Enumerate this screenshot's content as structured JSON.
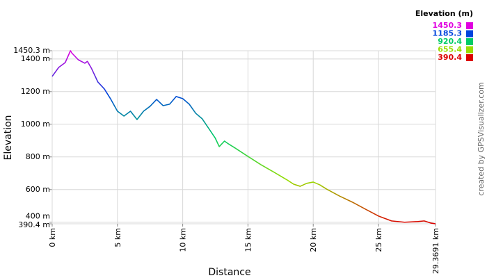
{
  "chart_data": {
    "type": "line",
    "xlabel": "Distance",
    "ylabel": "Elevation",
    "credit": "created by GPSVisualizer.com",
    "x": [
      0,
      0.5,
      1,
      1.4,
      1.5,
      2,
      2.5,
      2.7,
      3,
      3.5,
      4,
      4.5,
      5,
      5.5,
      6,
      6.5,
      7,
      7.5,
      8,
      8.5,
      9,
      9.5,
      10,
      10.5,
      11,
      11.5,
      12,
      12.5,
      12.8,
      13.2,
      13.5,
      14,
      14.5,
      15,
      16,
      17,
      18,
      18.5,
      19,
      19.5,
      20,
      20.5,
      21,
      22,
      23,
      24,
      25,
      26,
      27,
      28,
      28.5,
      29,
      29.3691
    ],
    "values": [
      1293,
      1348,
      1378,
      1450.3,
      1437,
      1395,
      1374,
      1385,
      1344,
      1259,
      1216,
      1152,
      1080,
      1050,
      1080,
      1029,
      1080,
      1110,
      1152,
      1114,
      1123,
      1170,
      1157,
      1123,
      1067,
      1033,
      974,
      914,
      863,
      897,
      880,
      855,
      829,
      803,
      752,
      706,
      659,
      633,
      620,
      638,
      646,
      629,
      604,
      561,
      523,
      480,
      438,
      408,
      400,
      404,
      408,
      395,
      390.4
    ],
    "xlim": [
      0,
      29.3691
    ],
    "ylim": [
      390.4,
      1450.3
    ],
    "xticks": [
      {
        "value": 0,
        "label": "0 km"
      },
      {
        "value": 5,
        "label": "5 km"
      },
      {
        "value": 10,
        "label": "10 km"
      },
      {
        "value": 15,
        "label": "15 km"
      },
      {
        "value": 20,
        "label": "20 km"
      },
      {
        "value": 25,
        "label": "25 km"
      },
      {
        "value": 29.3691,
        "label": "29.3691 km"
      }
    ],
    "yticks": [
      {
        "value": 1450.3,
        "label": "1450.3 m"
      },
      {
        "value": 1400,
        "label": "1400 m"
      },
      {
        "value": 1200,
        "label": "1200 m"
      },
      {
        "value": 1000,
        "label": "1000 m"
      },
      {
        "value": 800,
        "label": "800 m"
      },
      {
        "value": 600,
        "label": "600 m"
      },
      {
        "value": 400,
        "label": "400 m"
      },
      {
        "value": 390.4,
        "label": "390.4 m"
      }
    ],
    "grid": true,
    "color_scale": {
      "title": "Elevation (m)",
      "stops": [
        {
          "value": 1450.3,
          "color": "#e000e0"
        },
        {
          "value": 1185.3,
          "color": "#0044dd"
        },
        {
          "value": 920.4,
          "color": "#00cc66"
        },
        {
          "value": 655.4,
          "color": "#99dd00"
        },
        {
          "value": 390.4,
          "color": "#dd0000"
        }
      ]
    }
  }
}
